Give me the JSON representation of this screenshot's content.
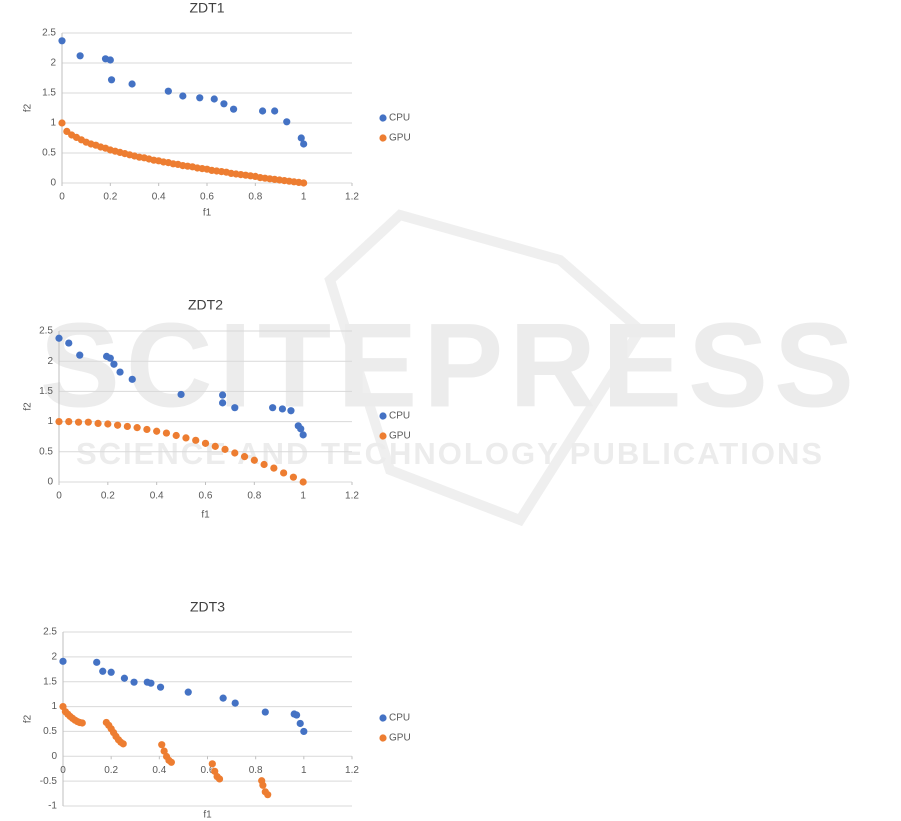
{
  "watermark": {
    "title": "SCITEPRESS",
    "subtitle": "SCIENCE AND TECHNOLOGY PUBLICATIONS"
  },
  "chart_data": [
    {
      "type": "scatter",
      "title": "ZDT1",
      "x_label": "f1",
      "y_label": "f2",
      "xlim": [
        0,
        1.2
      ],
      "xticks": [
        0,
        0.2,
        0.4,
        0.6,
        0.8,
        1,
        1.2
      ],
      "ylim": [
        0,
        2.5
      ],
      "yticks": [
        0,
        0.5,
        1,
        1.5,
        2,
        2.5
      ],
      "grid": true,
      "legend": "right",
      "series": [
        {
          "name": "CPU",
          "color": "#4472c4",
          "x": [
            0,
            0.075,
            0.18,
            0.2,
            0.205,
            0.29,
            0.44,
            0.5,
            0.57,
            0.63,
            0.67,
            0.71,
            0.83,
            0.88,
            0.93,
            0.99,
            1.0
          ],
          "values": [
            2.37,
            2.12,
            2.07,
            2.05,
            1.72,
            1.65,
            1.53,
            1.45,
            1.42,
            1.4,
            1.32,
            1.23,
            1.2,
            1.2,
            1.02,
            0.75,
            0.65
          ]
        },
        {
          "name": "GPU",
          "color": "#ed7d31",
          "x": [
            0,
            0.02,
            0.04,
            0.06,
            0.08,
            0.1,
            0.12,
            0.14,
            0.16,
            0.18,
            0.2,
            0.22,
            0.24,
            0.26,
            0.28,
            0.3,
            0.32,
            0.34,
            0.36,
            0.38,
            0.4,
            0.42,
            0.44,
            0.46,
            0.48,
            0.5,
            0.52,
            0.54,
            0.56,
            0.58,
            0.6,
            0.62,
            0.64,
            0.66,
            0.68,
            0.7,
            0.72,
            0.74,
            0.76,
            0.78,
            0.8,
            0.82,
            0.84,
            0.86,
            0.88,
            0.9,
            0.92,
            0.94,
            0.96,
            0.98,
            1.0
          ],
          "values": [
            1,
            0.86,
            0.8,
            0.76,
            0.72,
            0.68,
            0.65,
            0.63,
            0.6,
            0.58,
            0.55,
            0.53,
            0.51,
            0.49,
            0.47,
            0.45,
            0.43,
            0.42,
            0.4,
            0.38,
            0.37,
            0.35,
            0.34,
            0.32,
            0.31,
            0.29,
            0.28,
            0.27,
            0.25,
            0.24,
            0.23,
            0.21,
            0.2,
            0.19,
            0.18,
            0.16,
            0.15,
            0.14,
            0.13,
            0.12,
            0.11,
            0.09,
            0.08,
            0.07,
            0.06,
            0.05,
            0.04,
            0.03,
            0.02,
            0.01,
            0
          ]
        }
      ]
    },
    {
      "type": "scatter",
      "title": "ZDT2",
      "x_label": "f1",
      "y_label": "f2",
      "xlim": [
        0,
        1.2
      ],
      "xticks": [
        0,
        0.2,
        0.4,
        0.6,
        0.8,
        1,
        1.2
      ],
      "ylim": [
        0,
        2.5
      ],
      "yticks": [
        0,
        0.5,
        1,
        1.5,
        2,
        2.5
      ],
      "grid": true,
      "legend": "right",
      "series": [
        {
          "name": "CPU",
          "color": "#4472c4",
          "x": [
            0,
            0.04,
            0.085,
            0.195,
            0.21,
            0.225,
            0.25,
            0.3,
            0.5,
            0.67,
            0.67,
            0.72,
            0.875,
            0.915,
            0.95,
            0.98,
            0.99,
            1.0
          ],
          "values": [
            2.38,
            2.3,
            2.1,
            2.08,
            2.05,
            1.95,
            1.82,
            1.7,
            1.45,
            1.44,
            1.31,
            1.23,
            1.23,
            1.21,
            1.18,
            0.93,
            0.88,
            0.78
          ]
        },
        {
          "name": "GPU",
          "color": "#ed7d31",
          "x": [
            0,
            0.04,
            0.08,
            0.12,
            0.16,
            0.2,
            0.24,
            0.28,
            0.32,
            0.36,
            0.4,
            0.44,
            0.48,
            0.52,
            0.56,
            0.6,
            0.64,
            0.68,
            0.72,
            0.76,
            0.8,
            0.84,
            0.88,
            0.92,
            0.96,
            1.0
          ],
          "values": [
            1,
            1,
            0.99,
            0.99,
            0.97,
            0.96,
            0.94,
            0.92,
            0.9,
            0.87,
            0.84,
            0.81,
            0.77,
            0.73,
            0.69,
            0.64,
            0.59,
            0.54,
            0.48,
            0.42,
            0.36,
            0.29,
            0.23,
            0.15,
            0.08,
            0
          ]
        }
      ]
    },
    {
      "type": "scatter",
      "title": "ZDT3",
      "x_label": "f1",
      "y_label": "f2",
      "xlim": [
        0,
        1.2
      ],
      "xticks": [
        0,
        0.2,
        0.4,
        0.6,
        0.8,
        1,
        1.2
      ],
      "ylim": [
        -1,
        2.5
      ],
      "yticks": [
        -1,
        -0.5,
        0,
        0.5,
        1,
        1.5,
        2,
        2.5
      ],
      "grid": true,
      "legend": "right",
      "series": [
        {
          "name": "CPU",
          "color": "#4472c4",
          "x": [
            0,
            0.14,
            0.165,
            0.2,
            0.255,
            0.295,
            0.35,
            0.365,
            0.405,
            0.52,
            0.665,
            0.715,
            0.84,
            0.96,
            0.97,
            0.985,
            1.0
          ],
          "values": [
            1.91,
            1.89,
            1.71,
            1.69,
            1.57,
            1.49,
            1.49,
            1.47,
            1.39,
            1.29,
            1.17,
            1.07,
            0.89,
            0.85,
            0.83,
            0.66,
            0.5
          ]
        },
        {
          "name": "GPU",
          "color": "#ed7d31",
          "x": [
            0,
            0.01,
            0.02,
            0.03,
            0.04,
            0.05,
            0.06,
            0.07,
            0.08,
            0.18,
            0.19,
            0.2,
            0.21,
            0.22,
            0.23,
            0.24,
            0.25,
            0.41,
            0.42,
            0.43,
            0.44,
            0.45,
            0.62,
            0.63,
            0.64,
            0.65,
            0.825,
            0.83,
            0.84,
            0.85
          ],
          "values": [
            1,
            0.897,
            0.847,
            0.8,
            0.762,
            0.726,
            0.698,
            0.679,
            0.67,
            0.68,
            0.623,
            0.553,
            0.477,
            0.4,
            0.334,
            0.282,
            0.25,
            0.233,
            0.105,
            -0.004,
            -0.082,
            -0.121,
            -0.152,
            -0.303,
            -0.409,
            -0.456,
            -0.492,
            -0.583,
            -0.715,
            -0.772
          ]
        }
      ]
    }
  ]
}
